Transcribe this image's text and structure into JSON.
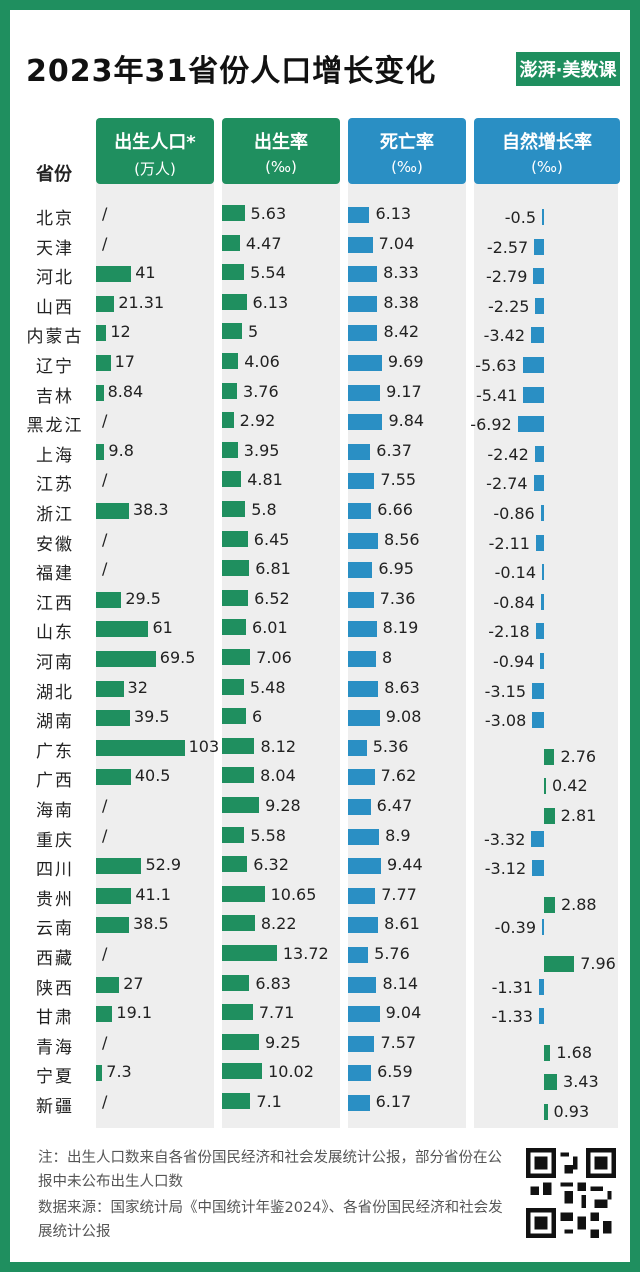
{
  "title": "2023年31省份人口增长变化",
  "brand": "澎湃·美数课",
  "province_header": "省份",
  "headers": [
    {
      "label": "出生人口*",
      "unit": "(万人)",
      "color": "#1f8f5f"
    },
    {
      "label": "出生率",
      "unit": "(‰)",
      "color": "#1f8f5f"
    },
    {
      "label": "死亡率",
      "unit": "(‰)",
      "color": "#2a8fc4"
    },
    {
      "label": "自然增长率",
      "unit": "(‰)",
      "color": "#2a8fc4"
    }
  ],
  "note": "注：出生人口数来自各省份国民经济和社会发展统计公报，部分省份在公报中未公布出生人口数",
  "source": "数据来源：国家统计局《中国统计年鉴2024》、各省份国民经济和社会发展统计公报",
  "chart_data": {
    "type": "table",
    "title": "2023年31省份人口增长变化",
    "missing_label": "/",
    "columns": [
      "出生人口*(万人)",
      "出生率(‰)",
      "死亡率(‰)",
      "自然增长率(‰)"
    ],
    "provinces": [
      "北京",
      "天津",
      "河北",
      "山西",
      "内蒙古",
      "辽宁",
      "吉林",
      "黑龙江",
      "上海",
      "江苏",
      "浙江",
      "安徽",
      "福建",
      "江西",
      "山东",
      "河南",
      "湖北",
      "湖南",
      "广东",
      "广西",
      "海南",
      "重庆",
      "四川",
      "贵州",
      "云南",
      "西藏",
      "陕西",
      "甘肃",
      "青海",
      "宁夏",
      "新疆"
    ],
    "births": [
      null,
      null,
      41,
      21.31,
      12,
      17,
      8.84,
      null,
      9.8,
      null,
      38.3,
      null,
      null,
      29.5,
      61,
      69.5,
      32,
      39.5,
      103,
      40.5,
      null,
      null,
      52.9,
      41.1,
      38.5,
      null,
      27,
      19.1,
      null,
      7.3,
      null
    ],
    "birth_rate": [
      5.63,
      4.47,
      5.54,
      6.13,
      5,
      4.06,
      3.76,
      2.92,
      3.95,
      4.81,
      5.8,
      6.45,
      6.81,
      6.52,
      6.01,
      7.06,
      5.48,
      6,
      8.12,
      8.04,
      9.28,
      5.58,
      6.32,
      10.65,
      8.22,
      13.72,
      6.83,
      7.71,
      9.25,
      10.02,
      7.1
    ],
    "death_rate": [
      6.13,
      7.04,
      8.33,
      8.38,
      8.42,
      9.69,
      9.17,
      9.84,
      6.37,
      7.55,
      6.66,
      8.56,
      6.95,
      7.36,
      8.19,
      8,
      8.63,
      9.08,
      5.36,
      7.62,
      6.47,
      8.9,
      9.44,
      7.77,
      8.61,
      5.76,
      8.14,
      9.04,
      7.57,
      6.59,
      6.17
    ],
    "natural_growth": [
      -0.5,
      -2.57,
      -2.79,
      -2.25,
      -3.42,
      -5.63,
      -5.41,
      -6.92,
      -2.42,
      -2.74,
      -0.86,
      -2.11,
      -0.14,
      -0.84,
      -2.18,
      -0.94,
      -3.15,
      -3.08,
      2.76,
      0.42,
      2.81,
      -3.32,
      -3.12,
      2.88,
      -0.39,
      7.96,
      -1.31,
      -1.33,
      1.68,
      3.43,
      0.93
    ]
  }
}
